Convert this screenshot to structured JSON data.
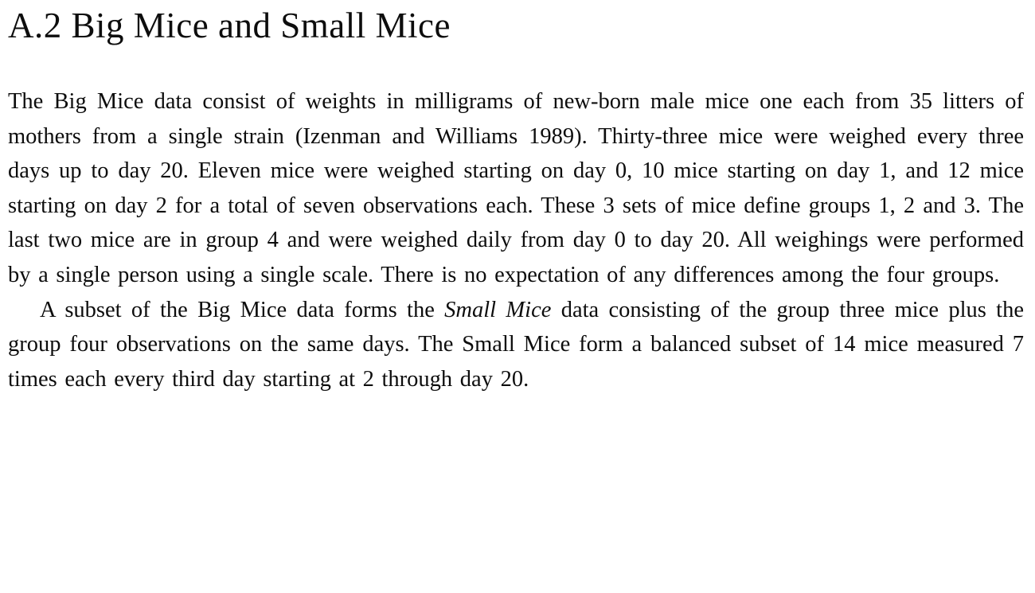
{
  "document": {
    "heading": "A.2 Big Mice and Small Mice",
    "paragraph1": "The Big Mice data consist of weights in milligrams of new-born male mice one each from 35 litters of mothers from a single strain (Izenman and Williams 1989). Thirty-three mice were weighed every three days up to day 20. Eleven mice were weighed starting on day 0, 10 mice starting on day 1, and 12 mice starting on day 2 for a total of seven observations each. These 3 sets of mice define groups 1, 2 and 3. The last two mice are in group 4 and were weighed daily from day 0 to day 20. All weighings were performed by a single person using a single scale. There is no expectation of any differences among the four groups.",
    "paragraph2_before": "A subset of the Big Mice data forms the ",
    "paragraph2_italic": "Small Mice",
    "paragraph2_after": " data consisting of the group three mice plus the group four observations on the same days. The Small Mice form a balanced subset of 14 mice measured 7 times each every third day starting at 2 through day 20."
  }
}
